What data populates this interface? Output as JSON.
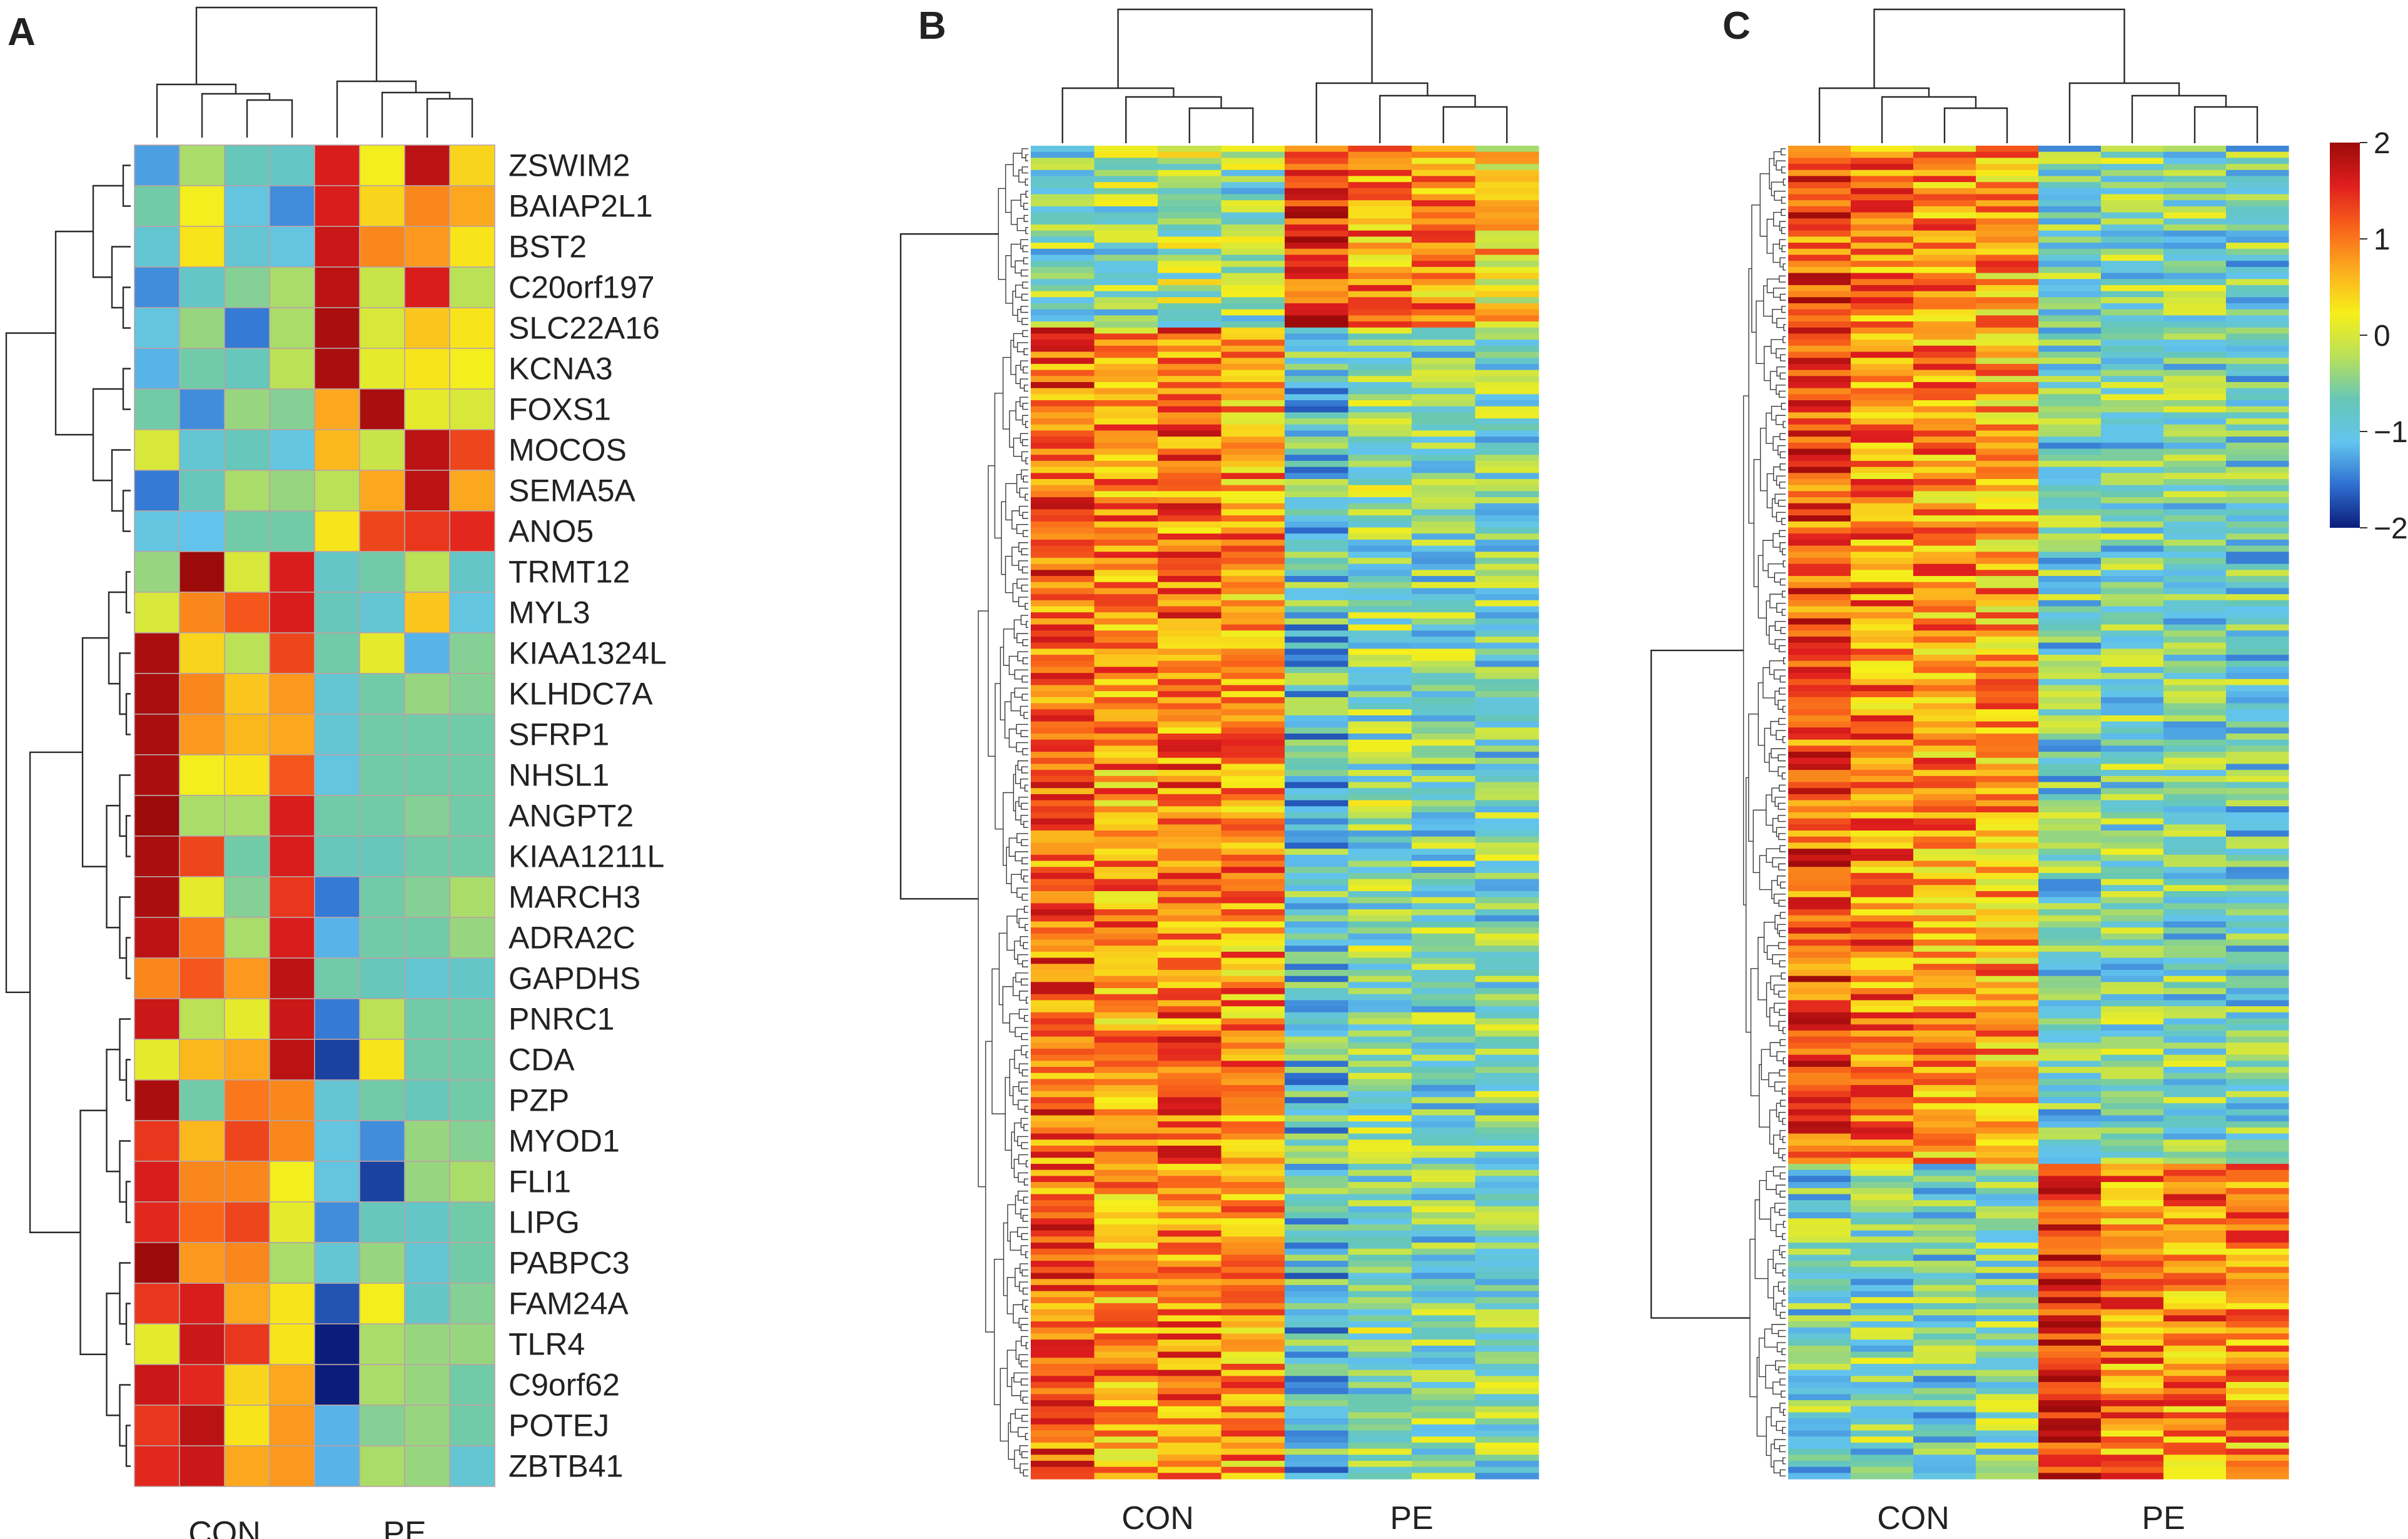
{
  "chart_data": [
    {
      "panel": "A",
      "type": "heatmap",
      "columns": [
        "CON",
        "CON",
        "CON",
        "CON",
        "PE",
        "PE",
        "PE",
        "PE"
      ],
      "column_groups": [
        "CON",
        "PE"
      ],
      "row_labels": [
        "ZSWIM2",
        "BAIAP2L1",
        "BST2",
        "C20orf197",
        "SLC22A16",
        "KCNA3",
        "FOXS1",
        "MOCOS",
        "SEMA5A",
        "ANO5",
        "TRMT12",
        "MYL3",
        "KIAA1324L",
        "KLHDC7A",
        "SFRP1",
        "NHSL1",
        "ANGPT2",
        "KIAA1211L",
        "MARCH3",
        "ADRA2C",
        "GAPDHS",
        "PNRC1",
        "CDA",
        "PZP",
        "MYOD1",
        "FLI1",
        "LIPG",
        "PABPC3",
        "FAM24A",
        "TLR4",
        "C9orf62",
        "POTEJ",
        "ZBTB41"
      ],
      "values": [
        [
          -1.3,
          -0.3,
          -0.7,
          -0.8,
          1.6,
          0.2,
          1.8,
          0.4
        ],
        [
          -0.6,
          0.2,
          -1.0,
          -1.4,
          1.6,
          0.4,
          0.9,
          0.7
        ],
        [
          -0.9,
          0.3,
          -0.9,
          -1.0,
          1.7,
          0.9,
          0.8,
          0.3
        ],
        [
          -1.4,
          -0.8,
          -0.5,
          -0.3,
          1.8,
          -0.1,
          1.6,
          -0.2
        ],
        [
          -1.0,
          -0.4,
          -1.5,
          -0.3,
          1.9,
          0.0,
          0.5,
          0.3
        ],
        [
          -1.2,
          -0.6,
          -0.7,
          -0.2,
          1.9,
          0.1,
          0.3,
          0.2
        ],
        [
          -0.6,
          -1.4,
          -0.4,
          -0.5,
          0.7,
          1.9,
          0.1,
          0.0
        ],
        [
          0.0,
          -0.9,
          -0.7,
          -1.0,
          0.6,
          -0.1,
          1.8,
          1.3
        ],
        [
          -1.5,
          -0.7,
          -0.3,
          -0.4,
          -0.2,
          0.7,
          1.8,
          0.7
        ],
        [
          -1.0,
          -1.1,
          -0.6,
          -0.6,
          0.3,
          1.3,
          1.4,
          1.5
        ],
        [
          -0.4,
          2.0,
          0.0,
          1.6,
          -0.8,
          -0.6,
          -0.2,
          -0.8
        ],
        [
          0.0,
          0.9,
          1.2,
          1.6,
          -0.7,
          -0.9,
          0.5,
          -1.0
        ],
        [
          1.9,
          0.4,
          -0.2,
          1.3,
          -0.6,
          0.1,
          -1.2,
          -0.5
        ],
        [
          1.9,
          0.9,
          0.5,
          0.8,
          -0.9,
          -0.6,
          -0.4,
          -0.5
        ],
        [
          1.9,
          0.8,
          0.6,
          0.7,
          -0.9,
          -0.6,
          -0.6,
          -0.6
        ],
        [
          1.9,
          0.2,
          0.3,
          1.2,
          -1.0,
          -0.6,
          -0.6,
          -0.6
        ],
        [
          2.0,
          -0.3,
          -0.3,
          1.6,
          -0.6,
          -0.6,
          -0.5,
          -0.6
        ],
        [
          1.9,
          1.3,
          -0.6,
          1.6,
          -0.7,
          -0.7,
          -0.6,
          -0.6
        ],
        [
          1.9,
          0.1,
          -0.5,
          1.4,
          -1.5,
          -0.6,
          -0.5,
          -0.3
        ],
        [
          1.8,
          1.0,
          -0.3,
          1.6,
          -1.2,
          -0.6,
          -0.6,
          -0.4
        ],
        [
          0.9,
          1.2,
          0.8,
          1.8,
          -0.6,
          -0.7,
          -0.9,
          -0.8
        ],
        [
          1.7,
          -0.2,
          0.1,
          1.7,
          -1.5,
          -0.2,
          -0.6,
          -0.6
        ],
        [
          0.1,
          0.6,
          0.7,
          1.8,
          -1.8,
          0.3,
          -0.6,
          -0.6
        ],
        [
          1.9,
          -0.6,
          1.0,
          0.9,
          -0.9,
          -0.6,
          -0.7,
          -0.6
        ],
        [
          1.4,
          0.6,
          1.3,
          0.9,
          -1.0,
          -1.4,
          -0.4,
          -0.5
        ],
        [
          1.6,
          0.9,
          0.9,
          0.2,
          -1.0,
          -1.8,
          -0.4,
          -0.3
        ],
        [
          1.5,
          1.1,
          1.3,
          0.1,
          -1.4,
          -0.7,
          -0.8,
          -0.6
        ],
        [
          2.0,
          0.8,
          0.9,
          -0.3,
          -0.9,
          -0.4,
          -0.9,
          -0.6
        ],
        [
          1.4,
          1.6,
          0.7,
          0.3,
          -1.7,
          0.2,
          -0.8,
          -0.5
        ],
        [
          0.1,
          1.7,
          1.4,
          0.3,
          -2.0,
          -0.3,
          -0.4,
          -0.4
        ],
        [
          1.7,
          1.5,
          0.4,
          0.7,
          -2.0,
          -0.3,
          -0.4,
          -0.6
        ],
        [
          1.4,
          1.8,
          0.3,
          0.8,
          -1.2,
          -0.5,
          -0.4,
          -0.6
        ],
        [
          1.5,
          1.7,
          0.7,
          0.8,
          -1.2,
          -0.3,
          -0.4,
          -0.9
        ]
      ]
    },
    {
      "panel": "B",
      "type": "heatmap",
      "columns": [
        "CON",
        "CON",
        "CON",
        "CON",
        "PE",
        "PE",
        "PE",
        "PE"
      ],
      "column_groups": [
        "CON",
        "PE"
      ],
      "row_count": 220,
      "blocks": [
        {
          "rows": 30,
          "col_means": [
            -0.6,
            -0.5,
            -0.3,
            -0.5,
            1.5,
            0.8,
            0.8,
            0.4
          ]
        },
        {
          "rows": 190,
          "col_means": [
            1.1,
            0.8,
            1.0,
            0.8,
            -0.9,
            -0.5,
            -0.6,
            -0.6
          ]
        }
      ]
    },
    {
      "panel": "C",
      "type": "heatmap",
      "columns": [
        "CON",
        "CON",
        "CON",
        "CON",
        "PE",
        "PE",
        "PE",
        "PE"
      ],
      "column_groups": [
        "CON",
        "PE"
      ],
      "row_count": 220,
      "blocks": [
        {
          "rows": 168,
          "col_means": [
            1.2,
            0.9,
            0.8,
            0.7,
            -0.7,
            -0.6,
            -0.6,
            -0.7
          ]
        },
        {
          "rows": 52,
          "col_means": [
            -0.7,
            -0.6,
            -0.7,
            -0.6,
            1.6,
            0.9,
            0.9,
            0.8
          ]
        }
      ]
    }
  ],
  "colorbar": {
    "min": -2,
    "max": 2,
    "ticks": [
      "2",
      "1",
      "0",
      "−1",
      "−2"
    ],
    "tick_values": [
      2,
      1,
      0,
      -1,
      -2
    ],
    "colors": [
      "#0b1d7a",
      "#2f6fd0",
      "#62c4ee",
      "#66c7b6",
      "#b8e05a",
      "#f6ef1a",
      "#fcae1e",
      "#f9641a",
      "#e01e1e",
      "#9c0a0a"
    ]
  }
}
